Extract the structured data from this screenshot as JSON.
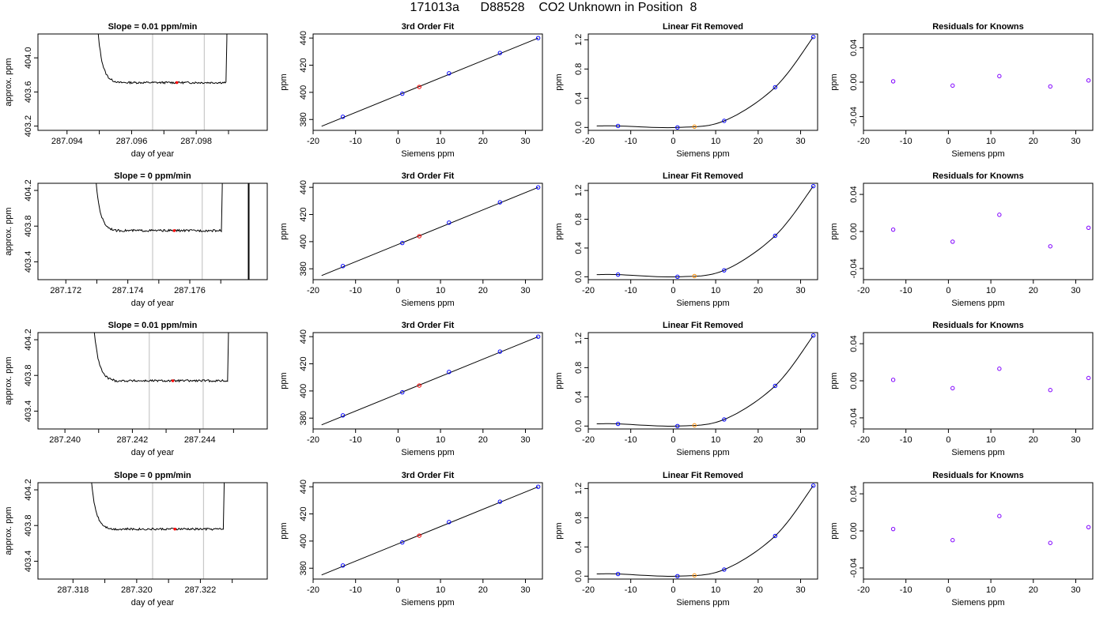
{
  "figure_title": "171013a      D88528    CO2 Unknown in Position  8",
  "chart_data": [
    {
      "row": 0,
      "col": 0,
      "type": "line",
      "title": "Slope =  0.01  ppm/min",
      "xlabel": "day of year",
      "ylabel": "approx. ppm",
      "xlim": [
        287.0931,
        287.1002
      ],
      "ylim": [
        403.15,
        404.28
      ],
      "xticks": [
        287.094,
        287.095,
        287.096,
        287.097,
        287.098,
        287.099
      ],
      "xtick_labels": [
        "287.094",
        "",
        "287.096",
        "",
        "287.098",
        ""
      ],
      "yticks": [
        403.2,
        403.6,
        404.0
      ],
      "ytick_labels": [
        "403.2",
        "403.6",
        "404.0"
      ],
      "vlines": [
        287.09665,
        287.09825
      ],
      "trace": {
        "x_start": 287.0949,
        "x_end": 287.099,
        "level": 403.71,
        "noise": 0.012
      },
      "marker": {
        "x": 287.0974,
        "y": 403.71
      }
    },
    {
      "row": 0,
      "col": 1,
      "type": "scatter",
      "title": "3rd Order Fit",
      "xlabel": "Siemens ppm",
      "ylabel": "ppm",
      "xlim": [
        -20,
        34
      ],
      "ylim": [
        372,
        443
      ],
      "xticks": [
        -20,
        -10,
        0,
        10,
        20,
        30
      ],
      "yticks": [
        380,
        400,
        420,
        440
      ],
      "fit_line": {
        "x": [
          -18,
          33
        ],
        "y": [
          375,
          440
        ]
      },
      "points": [
        {
          "x": -13,
          "y": 382
        },
        {
          "x": 1,
          "y": 399
        },
        {
          "x": 12,
          "y": 414
        },
        {
          "x": 24,
          "y": 429
        },
        {
          "x": 33,
          "y": 440
        }
      ],
      "unknown": {
        "x": 5,
        "y": 404
      }
    },
    {
      "row": 0,
      "col": 2,
      "type": "scatter",
      "title": "Linear Fit Removed",
      "xlabel": "Siemens ppm",
      "ylabel": "ppm",
      "xlim": [
        -20,
        34
      ],
      "ylim": [
        -0.04,
        1.28
      ],
      "xticks": [
        -20,
        -10,
        0,
        10,
        20,
        30
      ],
      "yticks": [
        0.0,
        0.4,
        0.8,
        1.2
      ],
      "yfmt": 1,
      "points": [
        {
          "x": -13,
          "y": 0.02
        },
        {
          "x": 1,
          "y": 0.0
        },
        {
          "x": 12,
          "y": 0.09
        },
        {
          "x": 24,
          "y": 0.55
        },
        {
          "x": 33,
          "y": 1.24
        }
      ],
      "unknown": {
        "x": 5,
        "y": 0.01
      }
    },
    {
      "row": 0,
      "col": 3,
      "type": "scatter",
      "title": "Residuals for Knowns",
      "xlabel": "Siemens ppm",
      "ylabel": "ppm",
      "xlim": [
        -20,
        34
      ],
      "ylim": [
        -0.056,
        0.056
      ],
      "xticks": [
        -20,
        -10,
        0,
        10,
        20,
        30
      ],
      "yticks": [
        -0.04,
        0.0,
        0.04
      ],
      "yfmt": 2,
      "points": [
        {
          "x": -13,
          "y": 0.001
        },
        {
          "x": 1,
          "y": -0.004
        },
        {
          "x": 12,
          "y": 0.007
        },
        {
          "x": 24,
          "y": -0.005
        },
        {
          "x": 33,
          "y": 0.002
        }
      ]
    },
    {
      "row": 1,
      "col": 0,
      "type": "line",
      "title": "Slope =  0  ppm/min",
      "xlabel": "day of year",
      "ylabel": "approx. ppm",
      "xlim": [
        287.1711,
        287.1785
      ],
      "ylim": [
        403.2,
        404.28
      ],
      "xticks": [
        287.172,
        287.173,
        287.174,
        287.175,
        287.176,
        287.177
      ],
      "xtick_labels": [
        "287.172",
        "",
        "287.174",
        "",
        "287.176",
        ""
      ],
      "yticks": [
        403.4,
        403.8,
        404.2
      ],
      "ytick_labels": [
        "403.4",
        "403.8",
        "404.2"
      ],
      "vlines": [
        287.1748,
        287.1764
      ],
      "black_vline": 287.1779,
      "trace": {
        "x_start": 287.1729,
        "x_end": 287.1771,
        "level": 403.75,
        "noise": 0.012
      },
      "marker": {
        "x": 287.1755,
        "y": 403.75
      }
    },
    {
      "row": 1,
      "col": 1,
      "type": "scatter",
      "title": "3rd Order Fit",
      "xlabel": "Siemens ppm",
      "ylabel": "ppm",
      "xlim": [
        -20,
        34
      ],
      "ylim": [
        372,
        443
      ],
      "xticks": [
        -20,
        -10,
        0,
        10,
        20,
        30
      ],
      "yticks": [
        380,
        400,
        420,
        440
      ],
      "fit_line": {
        "x": [
          -18,
          33
        ],
        "y": [
          375,
          440
        ]
      },
      "points": [
        {
          "x": -13,
          "y": 382
        },
        {
          "x": 1,
          "y": 399
        },
        {
          "x": 12,
          "y": 414
        },
        {
          "x": 24,
          "y": 429
        },
        {
          "x": 33,
          "y": 440
        }
      ],
      "unknown": {
        "x": 5,
        "y": 404
      }
    },
    {
      "row": 1,
      "col": 2,
      "type": "scatter",
      "title": "Linear Fit Removed",
      "xlabel": "Siemens ppm",
      "ylabel": "ppm",
      "xlim": [
        -20,
        34
      ],
      "ylim": [
        -0.04,
        1.3
      ],
      "xticks": [
        -20,
        -10,
        0,
        10,
        20,
        30
      ],
      "yticks": [
        0.0,
        0.4,
        0.8,
        1.2
      ],
      "yfmt": 1,
      "points": [
        {
          "x": -13,
          "y": 0.03
        },
        {
          "x": 1,
          "y": 0.0
        },
        {
          "x": 12,
          "y": 0.09
        },
        {
          "x": 24,
          "y": 0.57
        },
        {
          "x": 33,
          "y": 1.26
        }
      ],
      "unknown": {
        "x": 5,
        "y": 0.01
      }
    },
    {
      "row": 1,
      "col": 3,
      "type": "scatter",
      "title": "Residuals for Knowns",
      "xlabel": "Siemens ppm",
      "ylabel": "ppm",
      "xlim": [
        -20,
        34
      ],
      "ylim": [
        -0.052,
        0.052
      ],
      "xticks": [
        -20,
        -10,
        0,
        10,
        20,
        30
      ],
      "yticks": [
        -0.04,
        0.0,
        0.04
      ],
      "yfmt": 2,
      "points": [
        {
          "x": -13,
          "y": 0.002
        },
        {
          "x": 1,
          "y": -0.011
        },
        {
          "x": 12,
          "y": 0.018
        },
        {
          "x": 24,
          "y": -0.016
        },
        {
          "x": 33,
          "y": 0.004
        }
      ]
    },
    {
      "row": 2,
      "col": 0,
      "type": "line",
      "title": "Slope =  0.01  ppm/min",
      "xlabel": "day of year",
      "ylabel": "approx. ppm",
      "xlim": [
        287.2392,
        287.246
      ],
      "ylim": [
        403.2,
        404.28
      ],
      "xticks": [
        287.24,
        287.241,
        287.242,
        287.243,
        287.244,
        287.245
      ],
      "xtick_labels": [
        "287.240",
        "",
        "287.242",
        "",
        "287.244",
        ""
      ],
      "yticks": [
        403.4,
        403.8,
        404.2
      ],
      "ytick_labels": [
        "403.4",
        "403.8",
        "404.2"
      ],
      "vlines": [
        287.2425,
        287.2441
      ],
      "trace": {
        "x_start": 287.2408,
        "x_end": 287.2449,
        "level": 403.74,
        "noise": 0.012
      },
      "marker": {
        "x": 287.2432,
        "y": 403.74
      }
    },
    {
      "row": 2,
      "col": 1,
      "type": "scatter",
      "title": "3rd Order Fit",
      "xlabel": "Siemens ppm",
      "ylabel": "ppm",
      "xlim": [
        -20,
        34
      ],
      "ylim": [
        372,
        443
      ],
      "xticks": [
        -20,
        -10,
        0,
        10,
        20,
        30
      ],
      "yticks": [
        380,
        400,
        420,
        440
      ],
      "fit_line": {
        "x": [
          -18,
          33
        ],
        "y": [
          375,
          440
        ]
      },
      "points": [
        {
          "x": -13,
          "y": 382
        },
        {
          "x": 1,
          "y": 399
        },
        {
          "x": 12,
          "y": 414
        },
        {
          "x": 24,
          "y": 429
        },
        {
          "x": 33,
          "y": 440
        }
      ],
      "unknown": {
        "x": 5,
        "y": 404
      }
    },
    {
      "row": 2,
      "col": 2,
      "type": "scatter",
      "title": "Linear Fit Removed",
      "xlabel": "Siemens ppm",
      "ylabel": "ppm",
      "xlim": [
        -20,
        34
      ],
      "ylim": [
        -0.04,
        1.28
      ],
      "xticks": [
        -20,
        -10,
        0,
        10,
        20,
        30
      ],
      "yticks": [
        0.0,
        0.4,
        0.8,
        1.2
      ],
      "yfmt": 1,
      "points": [
        {
          "x": -13,
          "y": 0.03
        },
        {
          "x": 1,
          "y": 0.0
        },
        {
          "x": 12,
          "y": 0.09
        },
        {
          "x": 24,
          "y": 0.55
        },
        {
          "x": 33,
          "y": 1.24
        }
      ],
      "unknown": {
        "x": 5,
        "y": 0.01
      }
    },
    {
      "row": 2,
      "col": 3,
      "type": "scatter",
      "title": "Residuals for Knowns",
      "xlabel": "Siemens ppm",
      "ylabel": "ppm",
      "xlim": [
        -20,
        34
      ],
      "ylim": [
        -0.052,
        0.052
      ],
      "xticks": [
        -20,
        -10,
        0,
        10,
        20,
        30
      ],
      "yticks": [
        -0.04,
        0.0,
        0.04
      ],
      "yfmt": 2,
      "points": [
        {
          "x": -13,
          "y": 0.001
        },
        {
          "x": 1,
          "y": -0.008
        },
        {
          "x": 12,
          "y": 0.013
        },
        {
          "x": 24,
          "y": -0.01
        },
        {
          "x": 33,
          "y": 0.003
        }
      ]
    },
    {
      "row": 3,
      "col": 0,
      "type": "line",
      "title": "Slope =  0  ppm/min",
      "xlabel": "day of year",
      "ylabel": "approx. ppm",
      "xlim": [
        287.3169,
        287.3241
      ],
      "ylim": [
        403.2,
        404.28
      ],
      "xticks": [
        287.318,
        287.319,
        287.32,
        287.321,
        287.322,
        287.323
      ],
      "xtick_labels": [
        "287.318",
        "",
        "287.320",
        "",
        "287.322",
        ""
      ],
      "yticks": [
        403.4,
        403.8,
        404.2
      ],
      "ytick_labels": [
        "403.4",
        "403.8",
        "404.2"
      ],
      "vlines": [
        287.3205,
        287.3221
      ],
      "trace": {
        "x_start": 287.3185,
        "x_end": 287.3228,
        "level": 403.76,
        "noise": 0.012
      },
      "marker": {
        "x": 287.3212,
        "y": 403.76
      }
    },
    {
      "row": 3,
      "col": 1,
      "type": "scatter",
      "title": "3rd Order Fit",
      "xlabel": "Siemens ppm",
      "ylabel": "ppm",
      "xlim": [
        -20,
        34
      ],
      "ylim": [
        372,
        443
      ],
      "xticks": [
        -20,
        -10,
        0,
        10,
        20,
        30
      ],
      "yticks": [
        380,
        400,
        420,
        440
      ],
      "fit_line": {
        "x": [
          -18,
          33
        ],
        "y": [
          375,
          440
        ]
      },
      "points": [
        {
          "x": -13,
          "y": 382
        },
        {
          "x": 1,
          "y": 399
        },
        {
          "x": 12,
          "y": 414
        },
        {
          "x": 24,
          "y": 429
        },
        {
          "x": 33,
          "y": 440
        }
      ],
      "unknown": {
        "x": 5,
        "y": 404
      }
    },
    {
      "row": 3,
      "col": 2,
      "type": "scatter",
      "title": "Linear Fit Removed",
      "xlabel": "Siemens ppm",
      "ylabel": "ppm",
      "xlim": [
        -20,
        34
      ],
      "ylim": [
        -0.04,
        1.28
      ],
      "xticks": [
        -20,
        -10,
        0,
        10,
        20,
        30
      ],
      "yticks": [
        0.0,
        0.4,
        0.8,
        1.2
      ],
      "yfmt": 1,
      "points": [
        {
          "x": -13,
          "y": 0.03
        },
        {
          "x": 1,
          "y": 0.0
        },
        {
          "x": 12,
          "y": 0.09
        },
        {
          "x": 24,
          "y": 0.55
        },
        {
          "x": 33,
          "y": 1.24
        }
      ],
      "unknown": {
        "x": 5,
        "y": 0.01
      }
    },
    {
      "row": 3,
      "col": 3,
      "type": "scatter",
      "title": "Residuals for Knowns",
      "xlabel": "Siemens ppm",
      "ylabel": "ppm",
      "xlim": [
        -20,
        34
      ],
      "ylim": [
        -0.052,
        0.052
      ],
      "xticks": [
        -20,
        -10,
        0,
        10,
        20,
        30
      ],
      "yticks": [
        -0.04,
        0.0,
        0.04
      ],
      "yfmt": 2,
      "points": [
        {
          "x": -13,
          "y": 0.002
        },
        {
          "x": 1,
          "y": -0.01
        },
        {
          "x": 12,
          "y": 0.016
        },
        {
          "x": 24,
          "y": -0.013
        },
        {
          "x": 33,
          "y": 0.004
        }
      ]
    }
  ],
  "colors": {
    "known": "#0000ff",
    "unknown_fit": "#ff0000",
    "unknown_residual": "#ff8c00",
    "residual_point": "#8000ff",
    "vline": "#c8c8c8",
    "trace": "#000000"
  }
}
